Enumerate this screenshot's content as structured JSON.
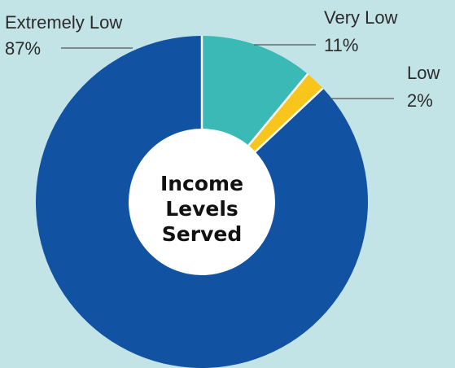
{
  "chart_data": {
    "type": "pie",
    "title": "Income Levels Served",
    "title_lines": [
      "Income",
      "Levels",
      "Served"
    ],
    "series": [
      {
        "name": "Extremely Low",
        "value": 87,
        "label": "87%",
        "color": "#1252a3"
      },
      {
        "name": "Very Low",
        "value": 11,
        "label": "11%",
        "color": "#3bb9b6"
      },
      {
        "name": "Low",
        "value": 2,
        "label": "2%",
        "color": "#f7c51c"
      }
    ],
    "background": "#c3e4e6",
    "hole_color": "#ffffff",
    "separator_color": "#ffffff"
  }
}
